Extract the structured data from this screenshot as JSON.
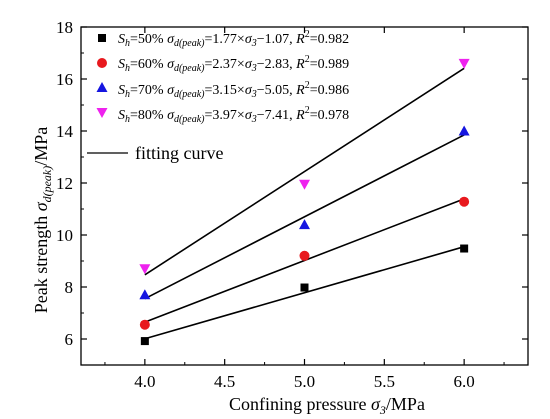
{
  "chart_data": {
    "type": "scatter",
    "xlabel": "Confining pressure σ3/MPa",
    "ylabel": "Peak strength σd(peak)/MPa",
    "xlim": [
      3.6,
      6.4
    ],
    "ylim": [
      5,
      18
    ],
    "x_ticks": [
      "4.0",
      "4.5",
      "5.0",
      "5.5",
      "6.0"
    ],
    "y_ticks": [
      "6",
      "8",
      "10",
      "12",
      "14",
      "16",
      "18"
    ],
    "grid": false,
    "legend_position": "top-left",
    "annotation": "fitting curve",
    "series": [
      {
        "name": "Sh=50%  σd(peak)=1.77×σ3−1.07, R2=0.982",
        "color": "#000000",
        "marker": "square",
        "x": [
          4.0,
          5.0,
          6.0
        ],
        "y": [
          5.92,
          7.98,
          9.48
        ],
        "fit": {
          "slope": 1.77,
          "intercept": -1.07
        }
      },
      {
        "name": "Sh=60%  σd(peak)=2.37×σ3−2.83, R2=0.989",
        "color": "#e8191e",
        "marker": "circle",
        "x": [
          4.0,
          5.0,
          6.0
        ],
        "y": [
          6.55,
          9.2,
          11.28
        ],
        "fit": {
          "slope": 2.37,
          "intercept": -2.83
        }
      },
      {
        "name": "Sh=70%  σd(peak)=3.15×σ3−5.05, R2=0.986",
        "color": "#1515e0",
        "marker": "triangle-up",
        "x": [
          4.0,
          5.0,
          6.0
        ],
        "y": [
          7.7,
          10.4,
          14.0
        ],
        "fit": {
          "slope": 3.15,
          "intercept": -5.05
        }
      },
      {
        "name": "Sh=80%  σd(peak)=3.97×σ3−7.41, R2=0.978",
        "color": "#ee22ee",
        "marker": "triangle-down",
        "x": [
          4.0,
          5.0,
          6.0
        ],
        "y": [
          8.7,
          11.95,
          16.6
        ],
        "fit": {
          "slope": 3.97,
          "intercept": -7.41
        }
      }
    ]
  }
}
